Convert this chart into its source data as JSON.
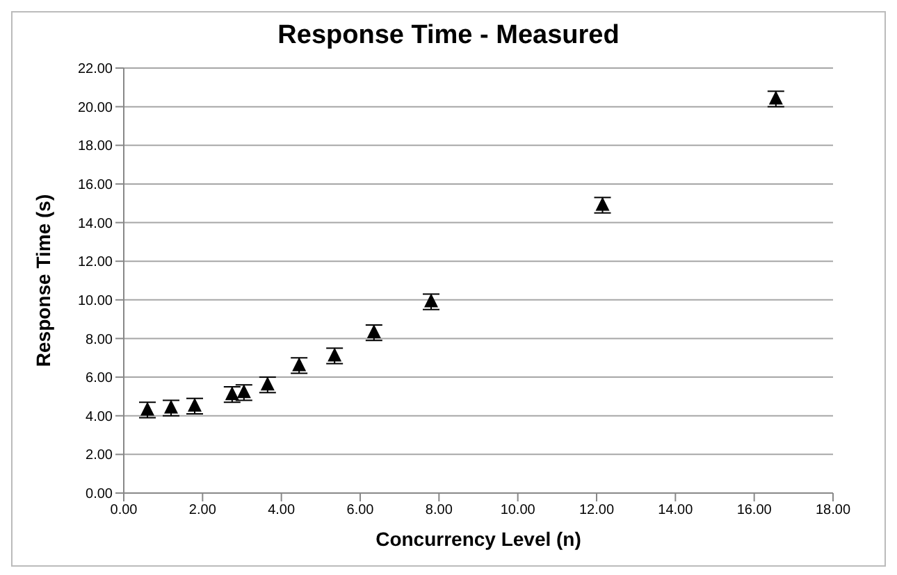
{
  "chart_data": {
    "type": "scatter",
    "title": "Response Time - Measured",
    "xlabel": "Concurrency Level (n)",
    "ylabel": "Response Time (s)",
    "x": [
      0.6,
      1.2,
      1.8,
      2.75,
      3.05,
      3.65,
      4.45,
      5.35,
      6.35,
      7.8,
      12.15,
      16.55
    ],
    "series": [
      {
        "color": "#000000",
        "values": [
          4.3,
          4.4,
          4.5,
          5.1,
          5.2,
          5.6,
          6.6,
          7.1,
          8.3,
          9.9,
          14.9,
          20.4
        ],
        "errors": [
          0.4,
          0.4,
          0.4,
          0.4,
          0.4,
          0.4,
          0.4,
          0.4,
          0.4,
          0.4,
          0.4,
          0.4
        ]
      }
    ],
    "marker": "triangle",
    "grid": "y",
    "legend": false,
    "xlim": [
      0,
      18
    ],
    "xticks": [
      {
        "value": 0,
        "label": "0.00"
      },
      {
        "value": 2,
        "label": "2.00"
      },
      {
        "value": 4,
        "label": "4.00"
      },
      {
        "value": 6,
        "label": "6.00"
      },
      {
        "value": 8,
        "label": "8.00"
      },
      {
        "value": 10,
        "label": "10.00"
      },
      {
        "value": 12,
        "label": "12.00"
      },
      {
        "value": 14,
        "label": "14.00"
      },
      {
        "value": 16,
        "label": "16.00"
      },
      {
        "value": 18,
        "label": "18.00"
      }
    ],
    "ylim": [
      0,
      22
    ],
    "yticks": [
      {
        "value": 0,
        "label": "0.00"
      },
      {
        "value": 2,
        "label": "2.00"
      },
      {
        "value": 4,
        "label": "4.00"
      },
      {
        "value": 6,
        "label": "6.00"
      },
      {
        "value": 8,
        "label": "8.00"
      },
      {
        "value": 10,
        "label": "10.00"
      },
      {
        "value": 12,
        "label": "12.00"
      },
      {
        "value": 14,
        "label": "14.00"
      },
      {
        "value": 16,
        "label": "16.00"
      },
      {
        "value": 18,
        "label": "18.00"
      },
      {
        "value": 20,
        "label": "20.00"
      },
      {
        "value": 22,
        "label": "22.00"
      }
    ]
  }
}
